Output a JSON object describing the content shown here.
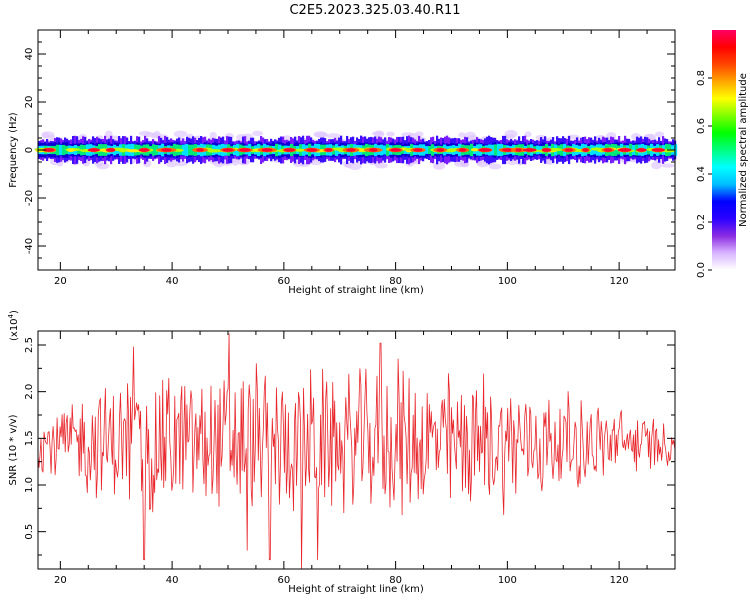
{
  "figure": {
    "title": "C2E5.2023.325.03.40.R11"
  },
  "chart_data": [
    {
      "type": "heatmap",
      "title": "",
      "xlabel": "Height of straight line (km)",
      "ylabel": "Frequency (Hz)",
      "xlim": [
        16,
        130
      ],
      "ylim": [
        -50,
        50
      ],
      "xticks": [
        20,
        40,
        60,
        80,
        100,
        120
      ],
      "yticks": [
        -40,
        -20,
        0,
        20,
        40
      ],
      "colorbar": {
        "label": "Normalized spectral amplitude",
        "range": [
          0,
          1
        ],
        "ticks": [
          "0.0",
          "0.2",
          "0.4",
          "0.6",
          "0.8"
        ],
        "colormap": [
          "#ffffff",
          "#d8b4ff",
          "#8a2be2",
          "#2a00ff",
          "#0000ff",
          "#00bfff",
          "#00ffff",
          "#00ff7f",
          "#00ff00",
          "#7fff00",
          "#ffff00",
          "#ffa500",
          "#ff4500",
          "#ff0000",
          "#ff0066"
        ]
      },
      "band": {
        "center_hz": 0,
        "edge_half_width_hz": 5,
        "core_half_width_hz": 2,
        "hot_spots_km": [
          18,
          26,
          29,
          35,
          39,
          45,
          50,
          53,
          57,
          61,
          65,
          68,
          72,
          76,
          80,
          84,
          88,
          92,
          96,
          100,
          102,
          104,
          107,
          111,
          114,
          118,
          121,
          124,
          127
        ]
      },
      "grid": false,
      "legend": "none"
    },
    {
      "type": "line",
      "title": "",
      "xlabel": "Height of straight line (km)",
      "ylabel": "SNR (10 * v/v)",
      "yscale_label": "(x10",
      "yscale_exp": "4",
      "yscale_close": ")",
      "xlim": [
        16,
        130
      ],
      "ylim": [
        0.1,
        2.65
      ],
      "xticks": [
        20,
        40,
        60,
        80,
        100,
        120
      ],
      "yticks": [
        "0.5",
        "1.0",
        "1.5",
        "2.0",
        "2.5"
      ],
      "ytick_values": [
        0.5,
        1.0,
        1.5,
        2.0,
        2.5
      ],
      "series": [
        {
          "color": "#e8262b",
          "generator": {
            "step_km": 0.18,
            "mean": 1.45,
            "amplitude_start": 0.35,
            "amplitude_mid": 0.85,
            "amplitude_end": 0.25,
            "peaks": [
              [
                33.1,
                2.48
              ],
              [
                35,
                0.2
              ],
              [
                50.2,
                2.62
              ],
              [
                53.5,
                0.3
              ],
              [
                55,
                2.3
              ],
              [
                57.5,
                0.2
              ],
              [
                63.2,
                0.1
              ],
              [
                66,
                0.2
              ],
              [
                77.3,
                2.52
              ],
              [
                80.5,
                2.35
              ]
            ]
          }
        }
      ],
      "grid": false,
      "legend": "none"
    }
  ]
}
